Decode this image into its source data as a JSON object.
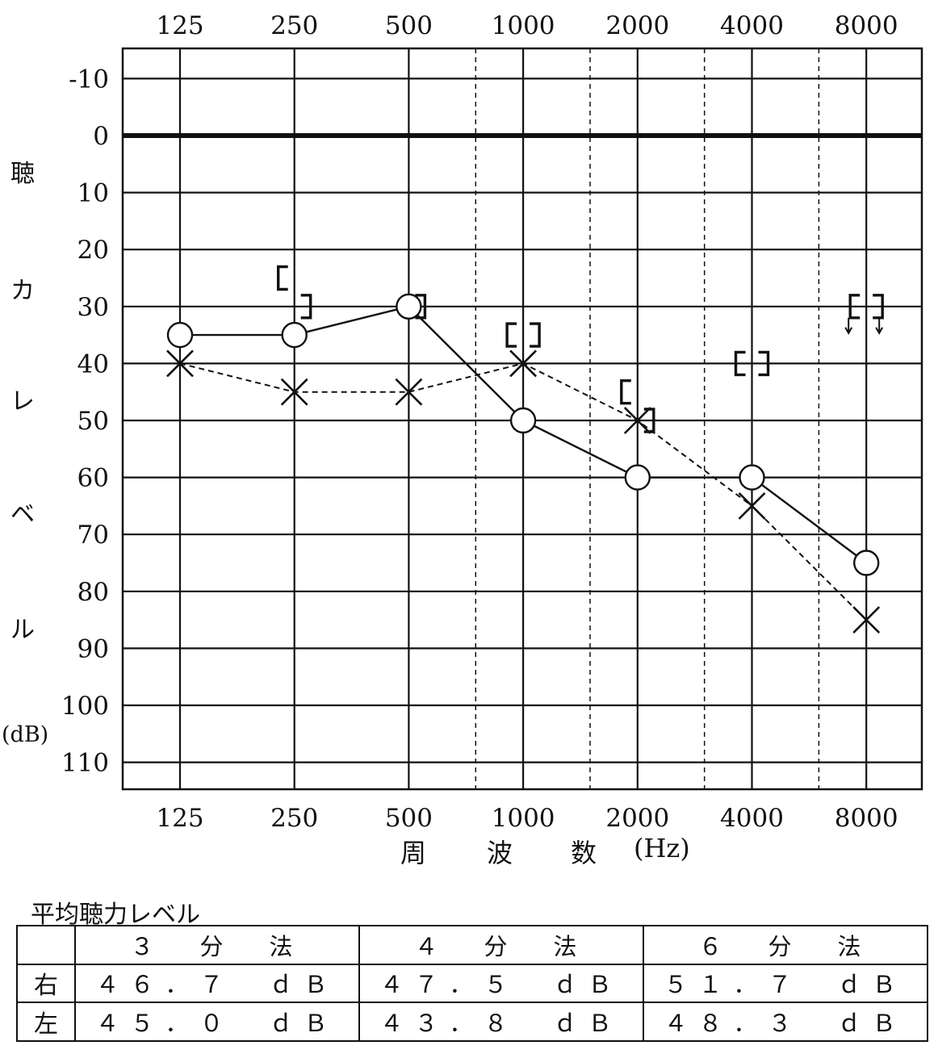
{
  "chart_data": {
    "type": "line",
    "x_tick_labels_top": [
      "125",
      "250",
      "500",
      "1000",
      "2000",
      "4000",
      "8000"
    ],
    "x_tick_labels_bottom": [
      "125",
      "250",
      "500",
      "1000",
      "2000",
      "4000",
      "8000"
    ],
    "y_tick_labels": [
      "-10",
      "0",
      "10",
      "20",
      "30",
      "40",
      "50",
      "60",
      "70",
      "80",
      "90",
      "100",
      "110"
    ],
    "ylim": [
      -15,
      115
    ],
    "y_inverted": true,
    "x_scale": "log2",
    "ylabel": "聴力レベル",
    "ylabel_chars": [
      "聴",
      "カ",
      "レ",
      "ベ",
      "ル"
    ],
    "y_unit": "(dB)",
    "xlabel": "周　波　数 (Hz)",
    "xlabel_parts": [
      "周",
      "波",
      "数",
      "(Hz)"
    ],
    "series": [
      {
        "marker": "circle",
        "line": "solid",
        "x": [
          125,
          250,
          500,
          1000,
          2000,
          4000,
          8000
        ],
        "y": [
          35,
          35,
          30,
          50,
          60,
          60,
          75
        ]
      },
      {
        "marker": "cross",
        "line": "dashed",
        "x": [
          125,
          250,
          500,
          1000,
          2000,
          4000,
          8000
        ],
        "y": [
          40,
          45,
          45,
          40,
          50,
          65,
          85
        ]
      },
      {
        "marker": "bracket-right",
        "x": [
          250,
          500,
          2000
        ],
        "y": [
          30,
          30,
          50
        ]
      },
      {
        "marker": "bracket-left",
        "x": [
          250,
          2000
        ],
        "y": [
          25,
          45
        ]
      },
      {
        "marker": "bracket-pair",
        "x": [
          1000,
          4000
        ],
        "y": [
          35,
          40
        ]
      },
      {
        "marker": "bracket-pair-no-response",
        "x": [
          8000
        ],
        "y": [
          30
        ]
      }
    ],
    "grid": true
  },
  "average": {
    "title": "平均聴力レベル",
    "headers": [
      "３　分　法",
      "４　分　法",
      "６　分　法"
    ],
    "rows": [
      {
        "side": "右",
        "values": [
          "４６．７　ｄＢ",
          "４７．５　ｄＢ",
          "５１．７　ｄＢ"
        ]
      },
      {
        "side": "左",
        "values": [
          "４５．０　ｄＢ",
          "４３．８　ｄＢ",
          "４８．３　ｄＢ"
        ]
      }
    ]
  }
}
